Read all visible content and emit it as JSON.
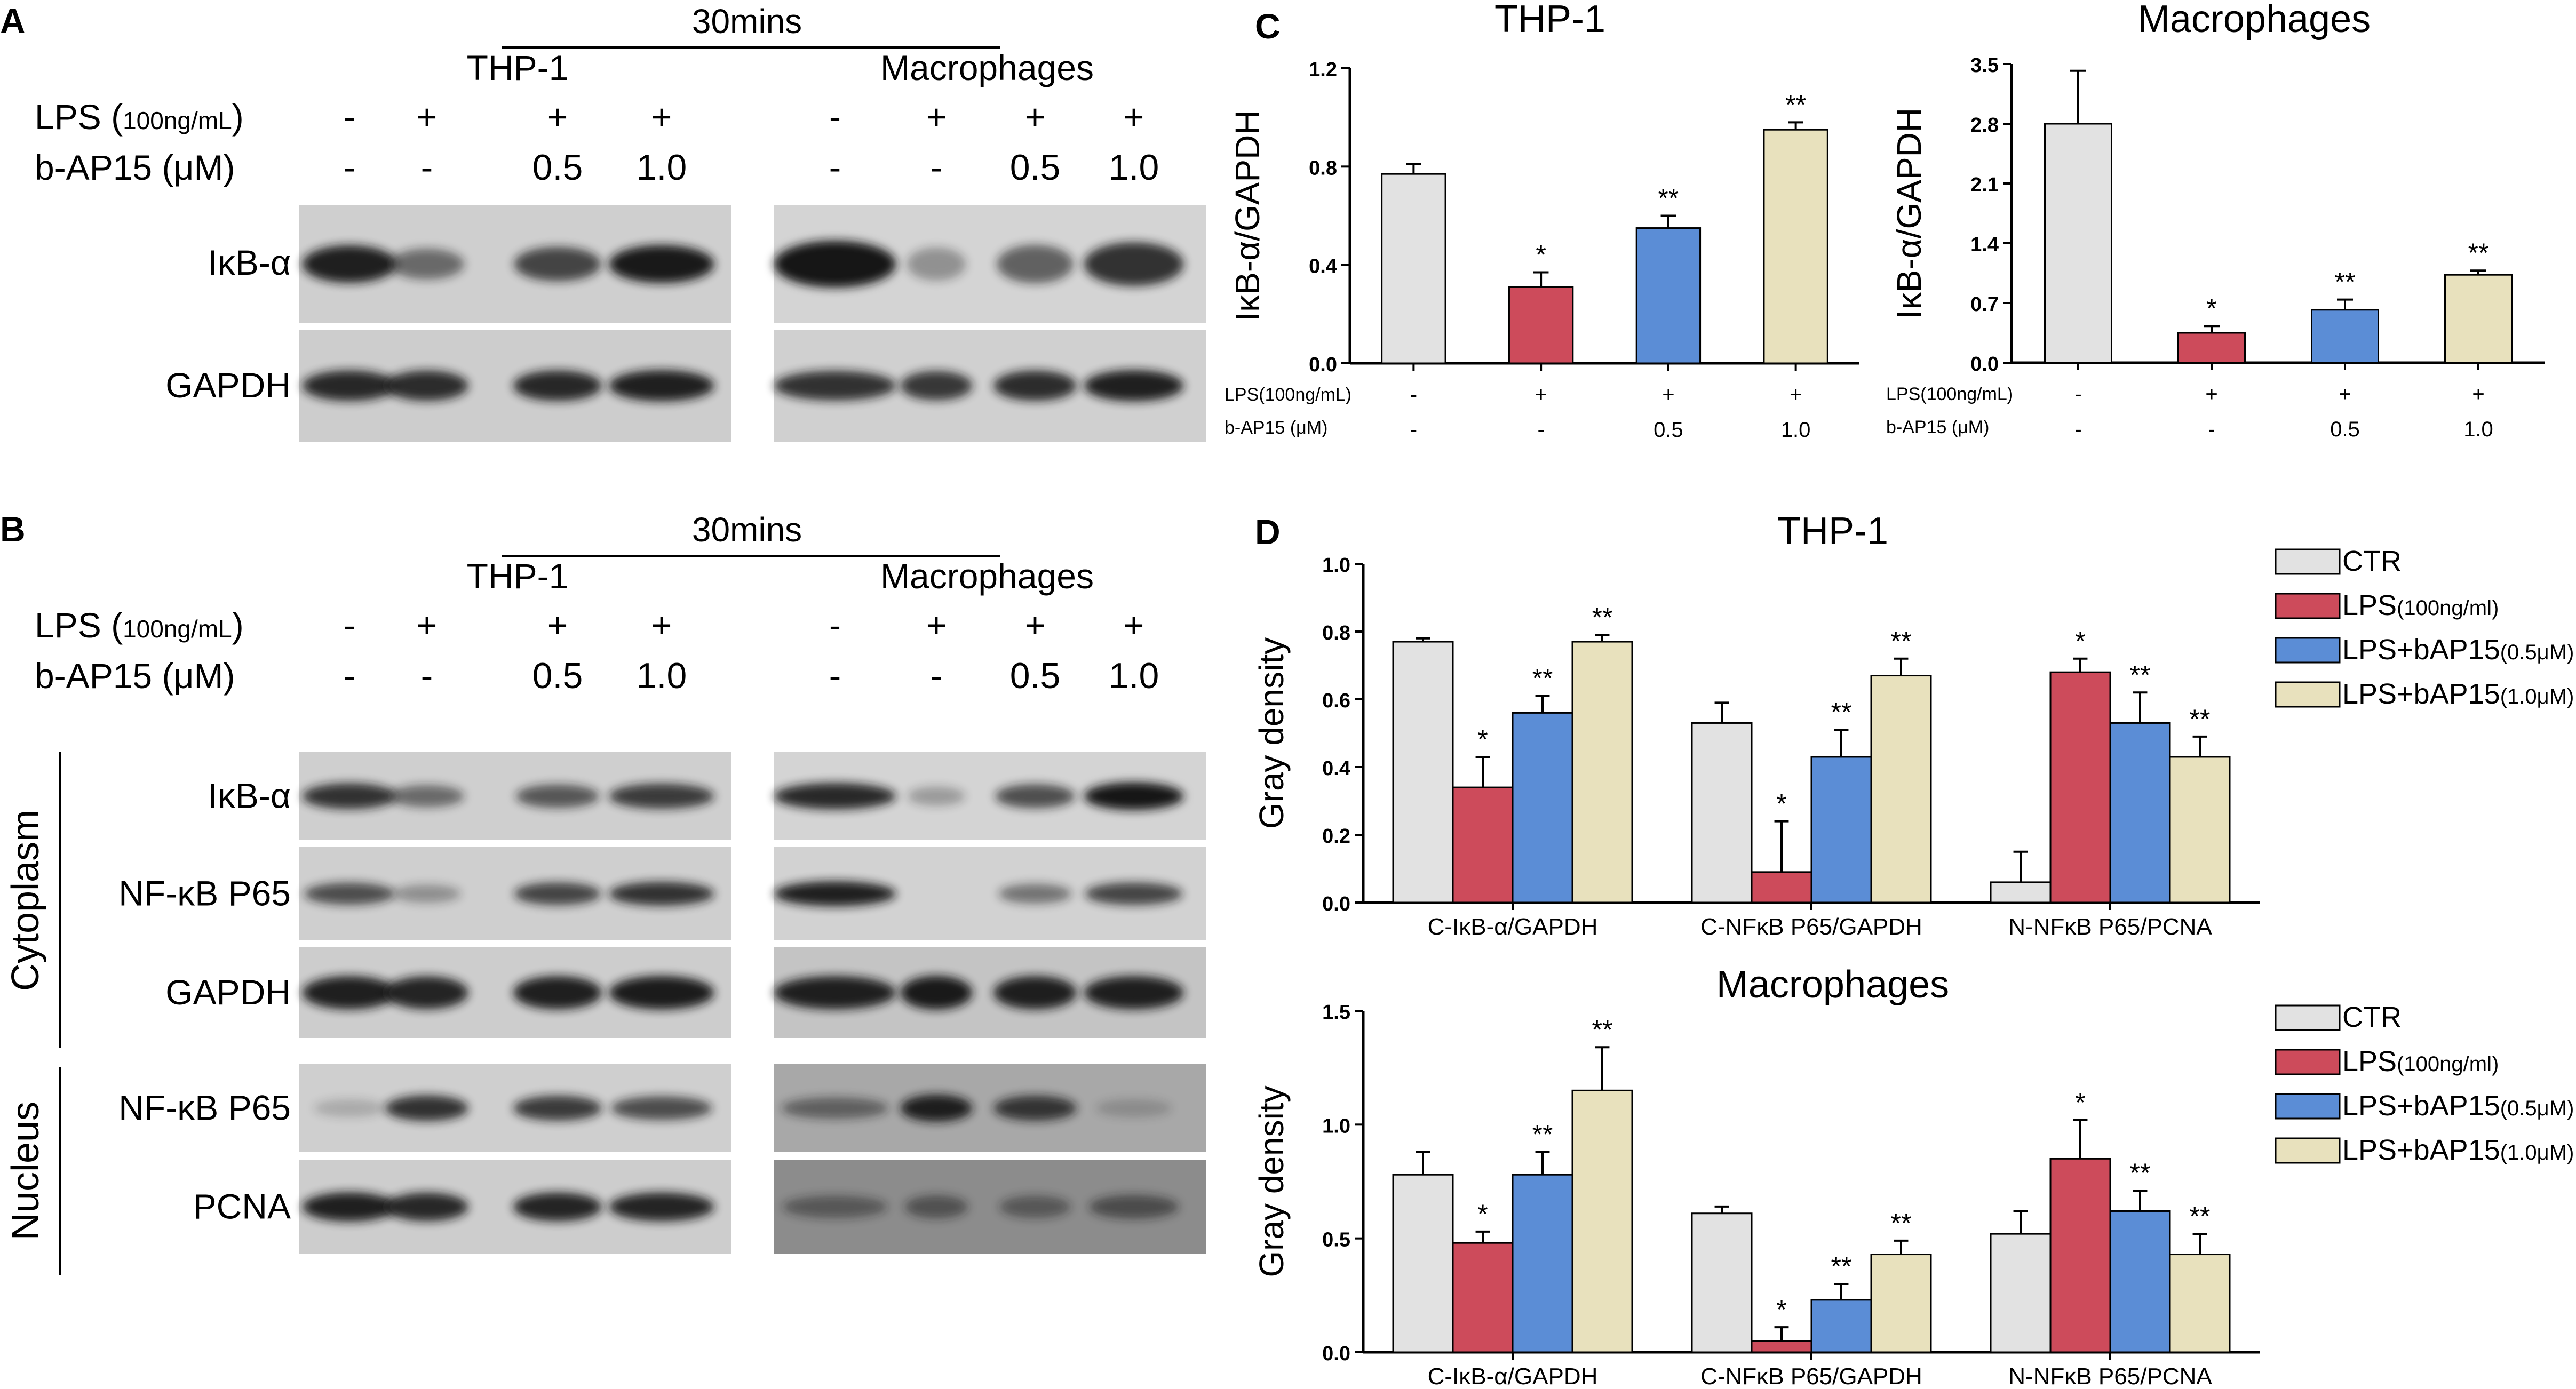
{
  "panel_letters": {
    "A": "A",
    "B": "B",
    "C": "C",
    "D": "D"
  },
  "colors": {
    "ctr": "#e2e2e2",
    "lps": "#cd4b5b",
    "lps_05": "#5b8dd6",
    "lps_10": "#e8e1bd",
    "gel_dark": "#141414",
    "gel_bg": "#c9c9c9"
  },
  "blots": {
    "time_label": "30mins",
    "cell_lines": [
      "THP-1",
      "Macrophages"
    ],
    "lps_row_label": "LPS (",
    "lps_row_conc": "100ng/mL",
    "lps_row_close": ")",
    "bap_row_label": "b-AP15 (μM)",
    "lps_signs": [
      "-",
      "+",
      "+",
      "+",
      "-",
      "+",
      "+",
      "+"
    ],
    "bap_values": [
      "-",
      "-",
      "0.5",
      "1.0",
      "-",
      "-",
      "0.5",
      "1.0"
    ],
    "panel_A_bands": [
      "IκB-α",
      "GAPDH"
    ],
    "panel_B_bands": [
      "IκB-α",
      "NF-κB P65",
      "GAPDH",
      "NF-κB P65",
      "PCNA"
    ],
    "fractions": [
      "Cytoplasm",
      "Nucleus"
    ]
  },
  "chart_data": [
    {
      "type": "bar",
      "panel": "C",
      "title": "THP-1",
      "ylabel": "IκB-α/GAPDH",
      "ylim": [
        0,
        1.2
      ],
      "yticks": [
        "0.0",
        "0.4",
        "0.8",
        "1.2"
      ],
      "xrow_labels": [
        "LPS(100ng/mL)",
        "b-AP15 (μM)"
      ],
      "lps_row": [
        "-",
        "+",
        "+",
        "+"
      ],
      "bap_row": [
        "-",
        "-",
        "0.5",
        "1.0"
      ],
      "values": [
        0.77,
        0.31,
        0.55,
        0.95
      ],
      "errors": [
        0.04,
        0.06,
        0.05,
        0.03
      ],
      "significance": [
        "",
        "*",
        "**",
        "**"
      ]
    },
    {
      "type": "bar",
      "panel": "C",
      "title": "Macrophages",
      "ylabel": "IκB-α/GAPDH",
      "ylim": [
        0,
        3.5
      ],
      "yticks": [
        "0.0",
        "0.7",
        "1.4",
        "2.1",
        "2.8",
        "3.5"
      ],
      "xrow_labels": [
        "LPS(100ng/mL)",
        "b-AP15 (μM)"
      ],
      "lps_row": [
        "-",
        "+",
        "+",
        "+"
      ],
      "bap_row": [
        "-",
        "-",
        "0.5",
        "1.0"
      ],
      "values": [
        2.8,
        0.35,
        0.62,
        1.03
      ],
      "errors": [
        0.62,
        0.08,
        0.12,
        0.05
      ],
      "significance": [
        "",
        "*",
        "**",
        "**"
      ]
    },
    {
      "type": "bar",
      "panel": "D",
      "title": "THP-1",
      "ylabel": "Gray density",
      "ylim": [
        0,
        1.0
      ],
      "yticks": [
        "0.0",
        "0.2",
        "0.4",
        "0.6",
        "0.8",
        "1.0"
      ],
      "categories": [
        "C-IκB-α/GAPDH",
        "C-NFκB P65/GAPDH",
        "N-NFκB P65/PCNA"
      ],
      "legend_position": "top-right",
      "series": [
        {
          "name": "CTR",
          "values": [
            0.77,
            0.53,
            0.06
          ],
          "errors": [
            0.01,
            0.06,
            0.09
          ],
          "significance": [
            "",
            "",
            ""
          ]
        },
        {
          "name": "LPS",
          "name_suffix": "(100ng/ml)",
          "values": [
            0.34,
            0.09,
            0.68
          ],
          "errors": [
            0.09,
            0.15,
            0.04
          ],
          "significance": [
            "*",
            "*",
            "*"
          ]
        },
        {
          "name": "LPS+bAP15",
          "name_suffix": "(0.5μM)",
          "values": [
            0.56,
            0.43,
            0.53
          ],
          "errors": [
            0.05,
            0.08,
            0.09
          ],
          "significance": [
            "**",
            "**",
            "**"
          ]
        },
        {
          "name": "LPS+bAP15",
          "name_suffix": "(1.0μM)",
          "values": [
            0.77,
            0.67,
            0.43
          ],
          "errors": [
            0.02,
            0.05,
            0.06
          ],
          "significance": [
            "**",
            "**",
            "**"
          ]
        }
      ]
    },
    {
      "type": "bar",
      "panel": "D",
      "title": "Macrophages",
      "ylabel": "Gray density",
      "ylim": [
        0,
        1.5
      ],
      "yticks": [
        "0.0",
        "0.5",
        "1.0",
        "1.5"
      ],
      "categories": [
        "C-IκB-α/GAPDH",
        "C-NFκB P65/GAPDH",
        "N-NFκB P65/PCNA"
      ],
      "legend_position": "top-right",
      "series": [
        {
          "name": "CTR",
          "values": [
            0.78,
            0.61,
            0.52
          ],
          "errors": [
            0.1,
            0.03,
            0.1
          ],
          "significance": [
            "",
            "",
            ""
          ]
        },
        {
          "name": "LPS",
          "name_suffix": "(100ng/ml)",
          "values": [
            0.48,
            0.05,
            0.85
          ],
          "errors": [
            0.05,
            0.06,
            0.17
          ],
          "significance": [
            "*",
            "*",
            "*"
          ]
        },
        {
          "name": "LPS+bAP15",
          "name_suffix": "(0.5μM)",
          "values": [
            0.78,
            0.23,
            0.62
          ],
          "errors": [
            0.1,
            0.07,
            0.09
          ],
          "significance": [
            "**",
            "**",
            "**"
          ]
        },
        {
          "name": "LPS+bAP15",
          "name_suffix": "(1.0μM)",
          "values": [
            1.15,
            0.43,
            0.43
          ],
          "errors": [
            0.19,
            0.06,
            0.09
          ],
          "significance": [
            "**",
            "**",
            "**"
          ]
        }
      ]
    }
  ]
}
